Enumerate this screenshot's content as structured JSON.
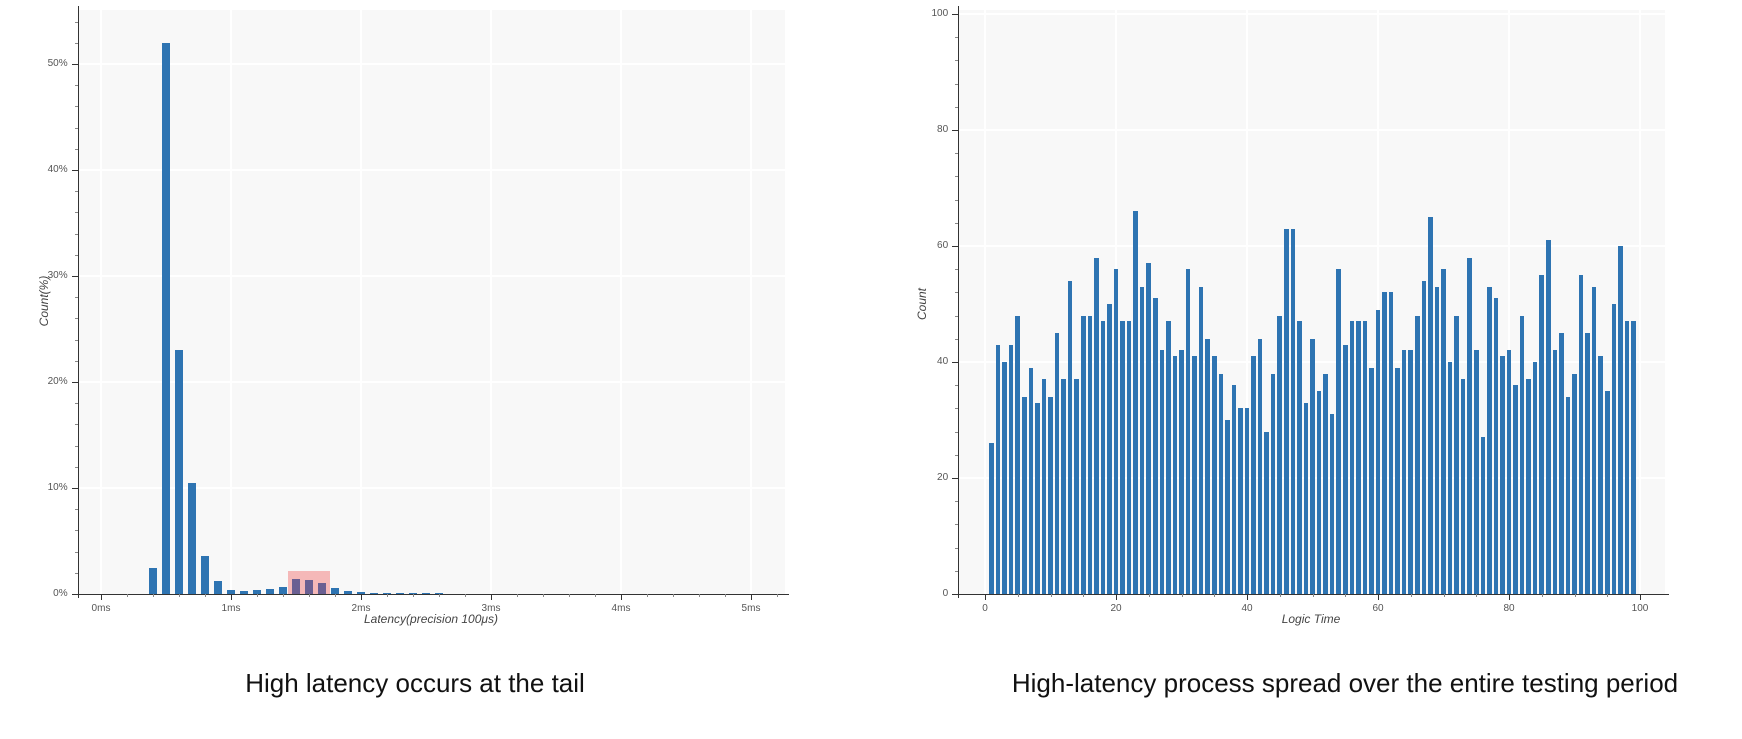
{
  "page": {
    "background": "#ffffff"
  },
  "colors": {
    "bar_blue": "#2e74b2",
    "highlight_pink": "#f5b8b8",
    "highlight_bar_purple": "#6a5f92",
    "plot_background": "#f8f8f8",
    "gridline": "#ffffff",
    "axis_line": "#333333",
    "tick_label": "#555555",
    "caption_text": "#111111"
  },
  "chart_data": [
    {
      "type": "bar",
      "title": "",
      "caption": "High latency occurs at the tail",
      "xlabel": "Latency(precision 100μs)",
      "ylabel": "Count(%)",
      "x_tick_labels": [
        "0ms",
        "1ms",
        "2ms",
        "3ms",
        "4ms",
        "5ms"
      ],
      "x_tick_values": [
        0,
        1,
        2,
        3,
        4,
        5
      ],
      "y_tick_labels": [
        "0%",
        "10%",
        "20%",
        "30%",
        "40%",
        "50%"
      ],
      "y_tick_values": [
        0,
        10,
        20,
        30,
        40,
        50
      ],
      "x_minor_step": 0.2,
      "y_minor_step": 2,
      "xlim": [
        -0.18,
        5.26
      ],
      "ylim": [
        0,
        55.1
      ],
      "grid": true,
      "legend": "none",
      "bin_width_ms": 0.1,
      "x": [
        0.4,
        0.5,
        0.6,
        0.7,
        0.8,
        0.9,
        1.0,
        1.1,
        1.2,
        1.3,
        1.4,
        1.5,
        1.6,
        1.7,
        1.8,
        1.9,
        2.0,
        2.1,
        2.2,
        2.3,
        2.4,
        2.5,
        2.6
      ],
      "values": [
        2.5,
        52,
        23,
        10.5,
        3.6,
        1.2,
        0.4,
        0.25,
        0.35,
        0.5,
        0.7,
        1.4,
        1.3,
        1.0,
        0.6,
        0.25,
        0.15,
        0.1,
        0.08,
        0.06,
        0.05,
        0.04,
        0.03
      ],
      "highlight": {
        "label": "high-latency-tail-region",
        "x_start": 1.44,
        "x_end": 1.76,
        "y_top": 2.2,
        "highlighted_bins": [
          1.5,
          1.6,
          1.7
        ]
      }
    },
    {
      "type": "bar",
      "title": "",
      "caption": "High-latency process spread over the entire testing period",
      "xlabel": "Logic Time",
      "ylabel": "Count",
      "x_tick_labels": [
        "0",
        "20",
        "40",
        "60",
        "80",
        "100"
      ],
      "x_tick_values": [
        0,
        20,
        40,
        60,
        80,
        100
      ],
      "y_tick_labels": [
        "0",
        "20",
        "40",
        "60",
        "80",
        "100"
      ],
      "y_tick_values": [
        0,
        20,
        40,
        60,
        80,
        100
      ],
      "x_minor_step": 5,
      "y_minor_step": 4,
      "xlim": [
        -4.1,
        103.8
      ],
      "ylim": [
        0,
        100.7
      ],
      "grid": true,
      "legend": "none",
      "x": [
        1,
        2,
        3,
        4,
        5,
        6,
        7,
        8,
        9,
        10,
        11,
        12,
        13,
        14,
        15,
        16,
        17,
        18,
        19,
        20,
        21,
        22,
        23,
        24,
        25,
        26,
        27,
        28,
        29,
        30,
        31,
        32,
        33,
        34,
        35,
        36,
        37,
        38,
        39,
        40,
        41,
        42,
        43,
        44,
        45,
        46,
        47,
        48,
        49,
        50,
        51,
        52,
        53,
        54,
        55,
        56,
        57,
        58,
        59,
        60,
        61,
        62,
        63,
        64,
        65,
        66,
        67,
        68,
        69,
        70,
        71,
        72,
        73,
        74,
        75,
        76,
        77,
        78,
        79,
        80,
        81,
        82,
        83,
        84,
        85,
        86,
        87,
        88,
        89,
        90,
        91,
        92,
        93,
        94,
        95,
        96,
        97,
        98,
        99
      ],
      "values": [
        26,
        43,
        40,
        43,
        48,
        34,
        39,
        33,
        37,
        34,
        45,
        37,
        54,
        37,
        48,
        48,
        58,
        47,
        50,
        56,
        47,
        47,
        66,
        53,
        57,
        51,
        42,
        47,
        41,
        42,
        56,
        41,
        53,
        44,
        41,
        38,
        30,
        36,
        32,
        32,
        41,
        44,
        28,
        38,
        48,
        63,
        63,
        47,
        33,
        44,
        35,
        38,
        31,
        56,
        43,
        47,
        47,
        47,
        39,
        49,
        52,
        52,
        39,
        42,
        42,
        48,
        54,
        65,
        53,
        56,
        40,
        48,
        37,
        58,
        42,
        27,
        53,
        51,
        41,
        42,
        36,
        48,
        37,
        40,
        55,
        61,
        42,
        45,
        34,
        38,
        55,
        45,
        53,
        41,
        35,
        50,
        60,
        47,
        47
      ]
    }
  ]
}
